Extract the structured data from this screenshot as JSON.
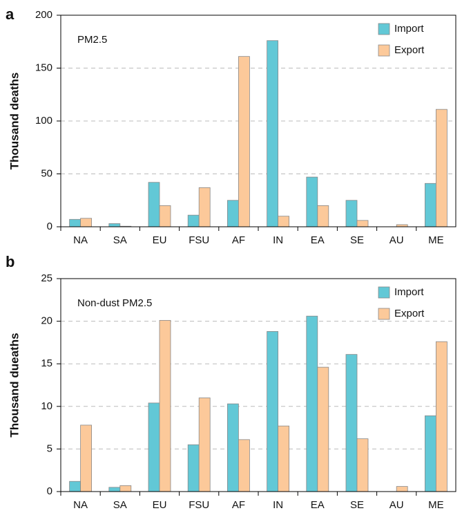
{
  "chart_data": [
    {
      "type": "bar",
      "panel": "a",
      "annotation": "PM2.5",
      "ylabel": "Thousand deaths",
      "categories": [
        "NA",
        "SA",
        "EU",
        "FSU",
        "AF",
        "IN",
        "EA",
        "SE",
        "AU",
        "ME"
      ],
      "series": [
        {
          "name": "Import",
          "color": "#62c8d6",
          "values": [
            7,
            3,
            42,
            11,
            25,
            176,
            47,
            25,
            0,
            41
          ]
        },
        {
          "name": "Export",
          "color": "#fcc99a",
          "values": [
            8,
            0.5,
            20,
            37,
            161,
            10,
            20,
            6,
            2,
            111
          ]
        }
      ],
      "ylim": [
        0,
        200
      ],
      "yticks": [
        0,
        50,
        100,
        150,
        200
      ],
      "grid": true,
      "legend": "upper right"
    },
    {
      "type": "bar",
      "panel": "b",
      "annotation": "Non-dust PM2.5",
      "ylabel": "Thousand dueaths",
      "categories": [
        "NA",
        "SA",
        "EU",
        "FSU",
        "AF",
        "IN",
        "EA",
        "SE",
        "AU",
        "ME"
      ],
      "series": [
        {
          "name": "Import",
          "color": "#62c8d6",
          "values": [
            1.2,
            0.5,
            10.4,
            5.5,
            10.3,
            18.8,
            20.6,
            16.1,
            0,
            8.9
          ]
        },
        {
          "name": "Export",
          "color": "#fcc99a",
          "values": [
            7.8,
            0.7,
            20.1,
            11.0,
            6.1,
            7.7,
            14.6,
            6.2,
            0.6,
            17.6
          ]
        }
      ],
      "ylim": [
        0,
        25
      ],
      "yticks": [
        0,
        5,
        10,
        15,
        20,
        25
      ],
      "grid": true,
      "legend": "upper right"
    }
  ]
}
